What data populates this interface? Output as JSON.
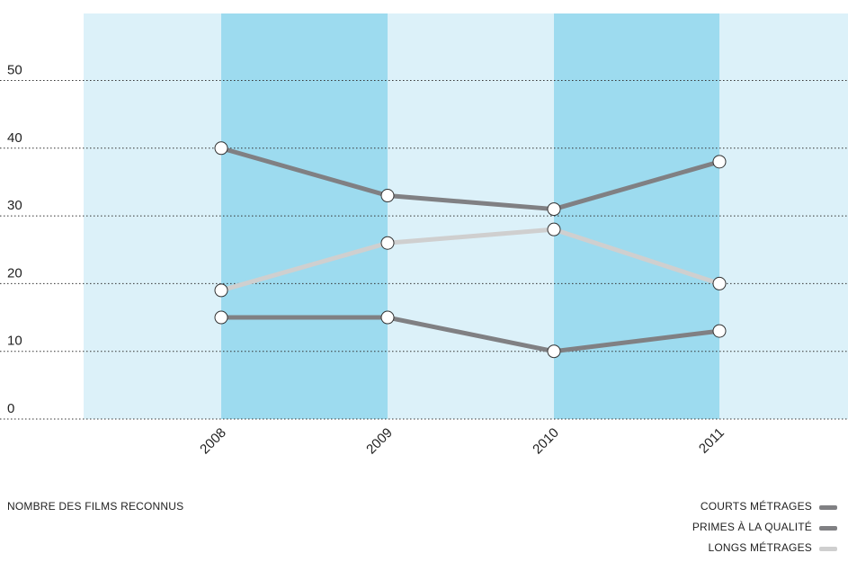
{
  "chart_data": {
    "type": "line",
    "caption": "NOMBRE DES FILMS RECONNUS",
    "categories": [
      "2008",
      "2009",
      "2010",
      "2011"
    ],
    "y_ticks": [
      "0",
      "10",
      "20",
      "30",
      "40",
      "50"
    ],
    "ylim": [
      0,
      60
    ],
    "grid": "dotted horizontal",
    "legend_position": "bottom-right",
    "colors": {
      "band_light": "#dcf1f9",
      "band_dark": "#9ddbef",
      "dark_series": "#808083",
      "light_series": "#cfcfcf"
    },
    "series": [
      {
        "name": "COURTS MÉTRAGES",
        "values": [
          40,
          33,
          31,
          38
        ],
        "color": "#808083"
      },
      {
        "name": "PRIMES À LA QUALITÉ",
        "values": [
          15,
          15,
          10,
          13
        ],
        "color": "#808083"
      },
      {
        "name": "LONGS MÉTRAGES",
        "values": [
          19,
          26,
          28,
          20
        ],
        "color": "#cfcfcf"
      }
    ]
  }
}
